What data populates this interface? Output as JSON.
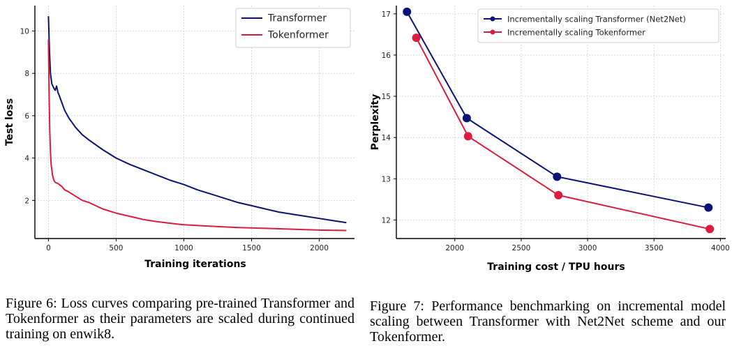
{
  "chart_data": [
    {
      "id": "fig6",
      "type": "line",
      "title": "",
      "xlabel": "Training iterations",
      "ylabel": "Test loss",
      "xlim": [
        -100,
        2260
      ],
      "ylim": [
        0.2,
        11.2
      ],
      "xticks": [
        0,
        500,
        1000,
        1500,
        2000
      ],
      "yticks": [
        2,
        4,
        6,
        8,
        10
      ],
      "grid": true,
      "legend": "top-right",
      "series": [
        {
          "name": "Transformer",
          "color": "#0b1275",
          "x": [
            0,
            8,
            15,
            25,
            40,
            50,
            60,
            70,
            80,
            100,
            120,
            150,
            200,
            250,
            300,
            400,
            500,
            600,
            700,
            800,
            900,
            1000,
            1100,
            1200,
            1300,
            1400,
            1500,
            1600,
            1700,
            1800,
            1900,
            2000,
            2100,
            2200
          ],
          "y": [
            10.7,
            9.0,
            8.0,
            7.5,
            7.3,
            7.2,
            7.4,
            7.1,
            6.95,
            6.6,
            6.25,
            5.9,
            5.45,
            5.1,
            4.85,
            4.4,
            4.0,
            3.7,
            3.45,
            3.2,
            2.95,
            2.75,
            2.5,
            2.3,
            2.1,
            1.9,
            1.75,
            1.6,
            1.45,
            1.35,
            1.25,
            1.15,
            1.05,
            0.95
          ]
        },
        {
          "name": "Tokenformer",
          "color": "#dc1c3c",
          "x": [
            0,
            5,
            10,
            15,
            20,
            30,
            40,
            50,
            70,
            100,
            120,
            150,
            200,
            250,
            300,
            400,
            500,
            600,
            700,
            800,
            900,
            1000,
            1200,
            1400,
            1600,
            1800,
            2000,
            2200
          ],
          "y": [
            9.6,
            7.0,
            5.3,
            4.3,
            3.7,
            3.2,
            2.95,
            2.85,
            2.8,
            2.65,
            2.5,
            2.4,
            2.2,
            2.0,
            1.9,
            1.6,
            1.4,
            1.25,
            1.1,
            1.0,
            0.92,
            0.85,
            0.78,
            0.72,
            0.68,
            0.64,
            0.6,
            0.58
          ]
        }
      ]
    },
    {
      "id": "fig7",
      "type": "line",
      "title": "",
      "xlabel": "Training cost / TPU hours",
      "ylabel": "Perplexity",
      "xlim": [
        1560,
        4040
      ],
      "ylim": [
        11.55,
        17.2
      ],
      "xticks": [
        2000,
        2500,
        3000,
        3500,
        4000
      ],
      "yticks": [
        12,
        13,
        14,
        15,
        16,
        17
      ],
      "grid": true,
      "legend": "top-right",
      "series": [
        {
          "name": "Incrementally scaling Transformer (Net2Net)",
          "color": "#0b1275",
          "x": [
            1640,
            2090,
            2770,
            3910
          ],
          "y": [
            17.05,
            14.47,
            13.05,
            12.3
          ]
        },
        {
          "name": "Incrementally scaling Tokenformer",
          "color": "#dc1c3c",
          "x": [
            1710,
            2100,
            2780,
            3920
          ],
          "y": [
            16.42,
            14.03,
            12.6,
            11.78
          ]
        }
      ]
    }
  ],
  "captions": {
    "fig6": "Figure 6: Loss curves comparing pre-trained Transformer and Tokenformer as their parameters are scaled during continued training on enwik8.",
    "fig7": "Figure 7: Performance benchmarking on incremental model scaling between Transformer with Net2Net scheme and our Tokenformer."
  }
}
